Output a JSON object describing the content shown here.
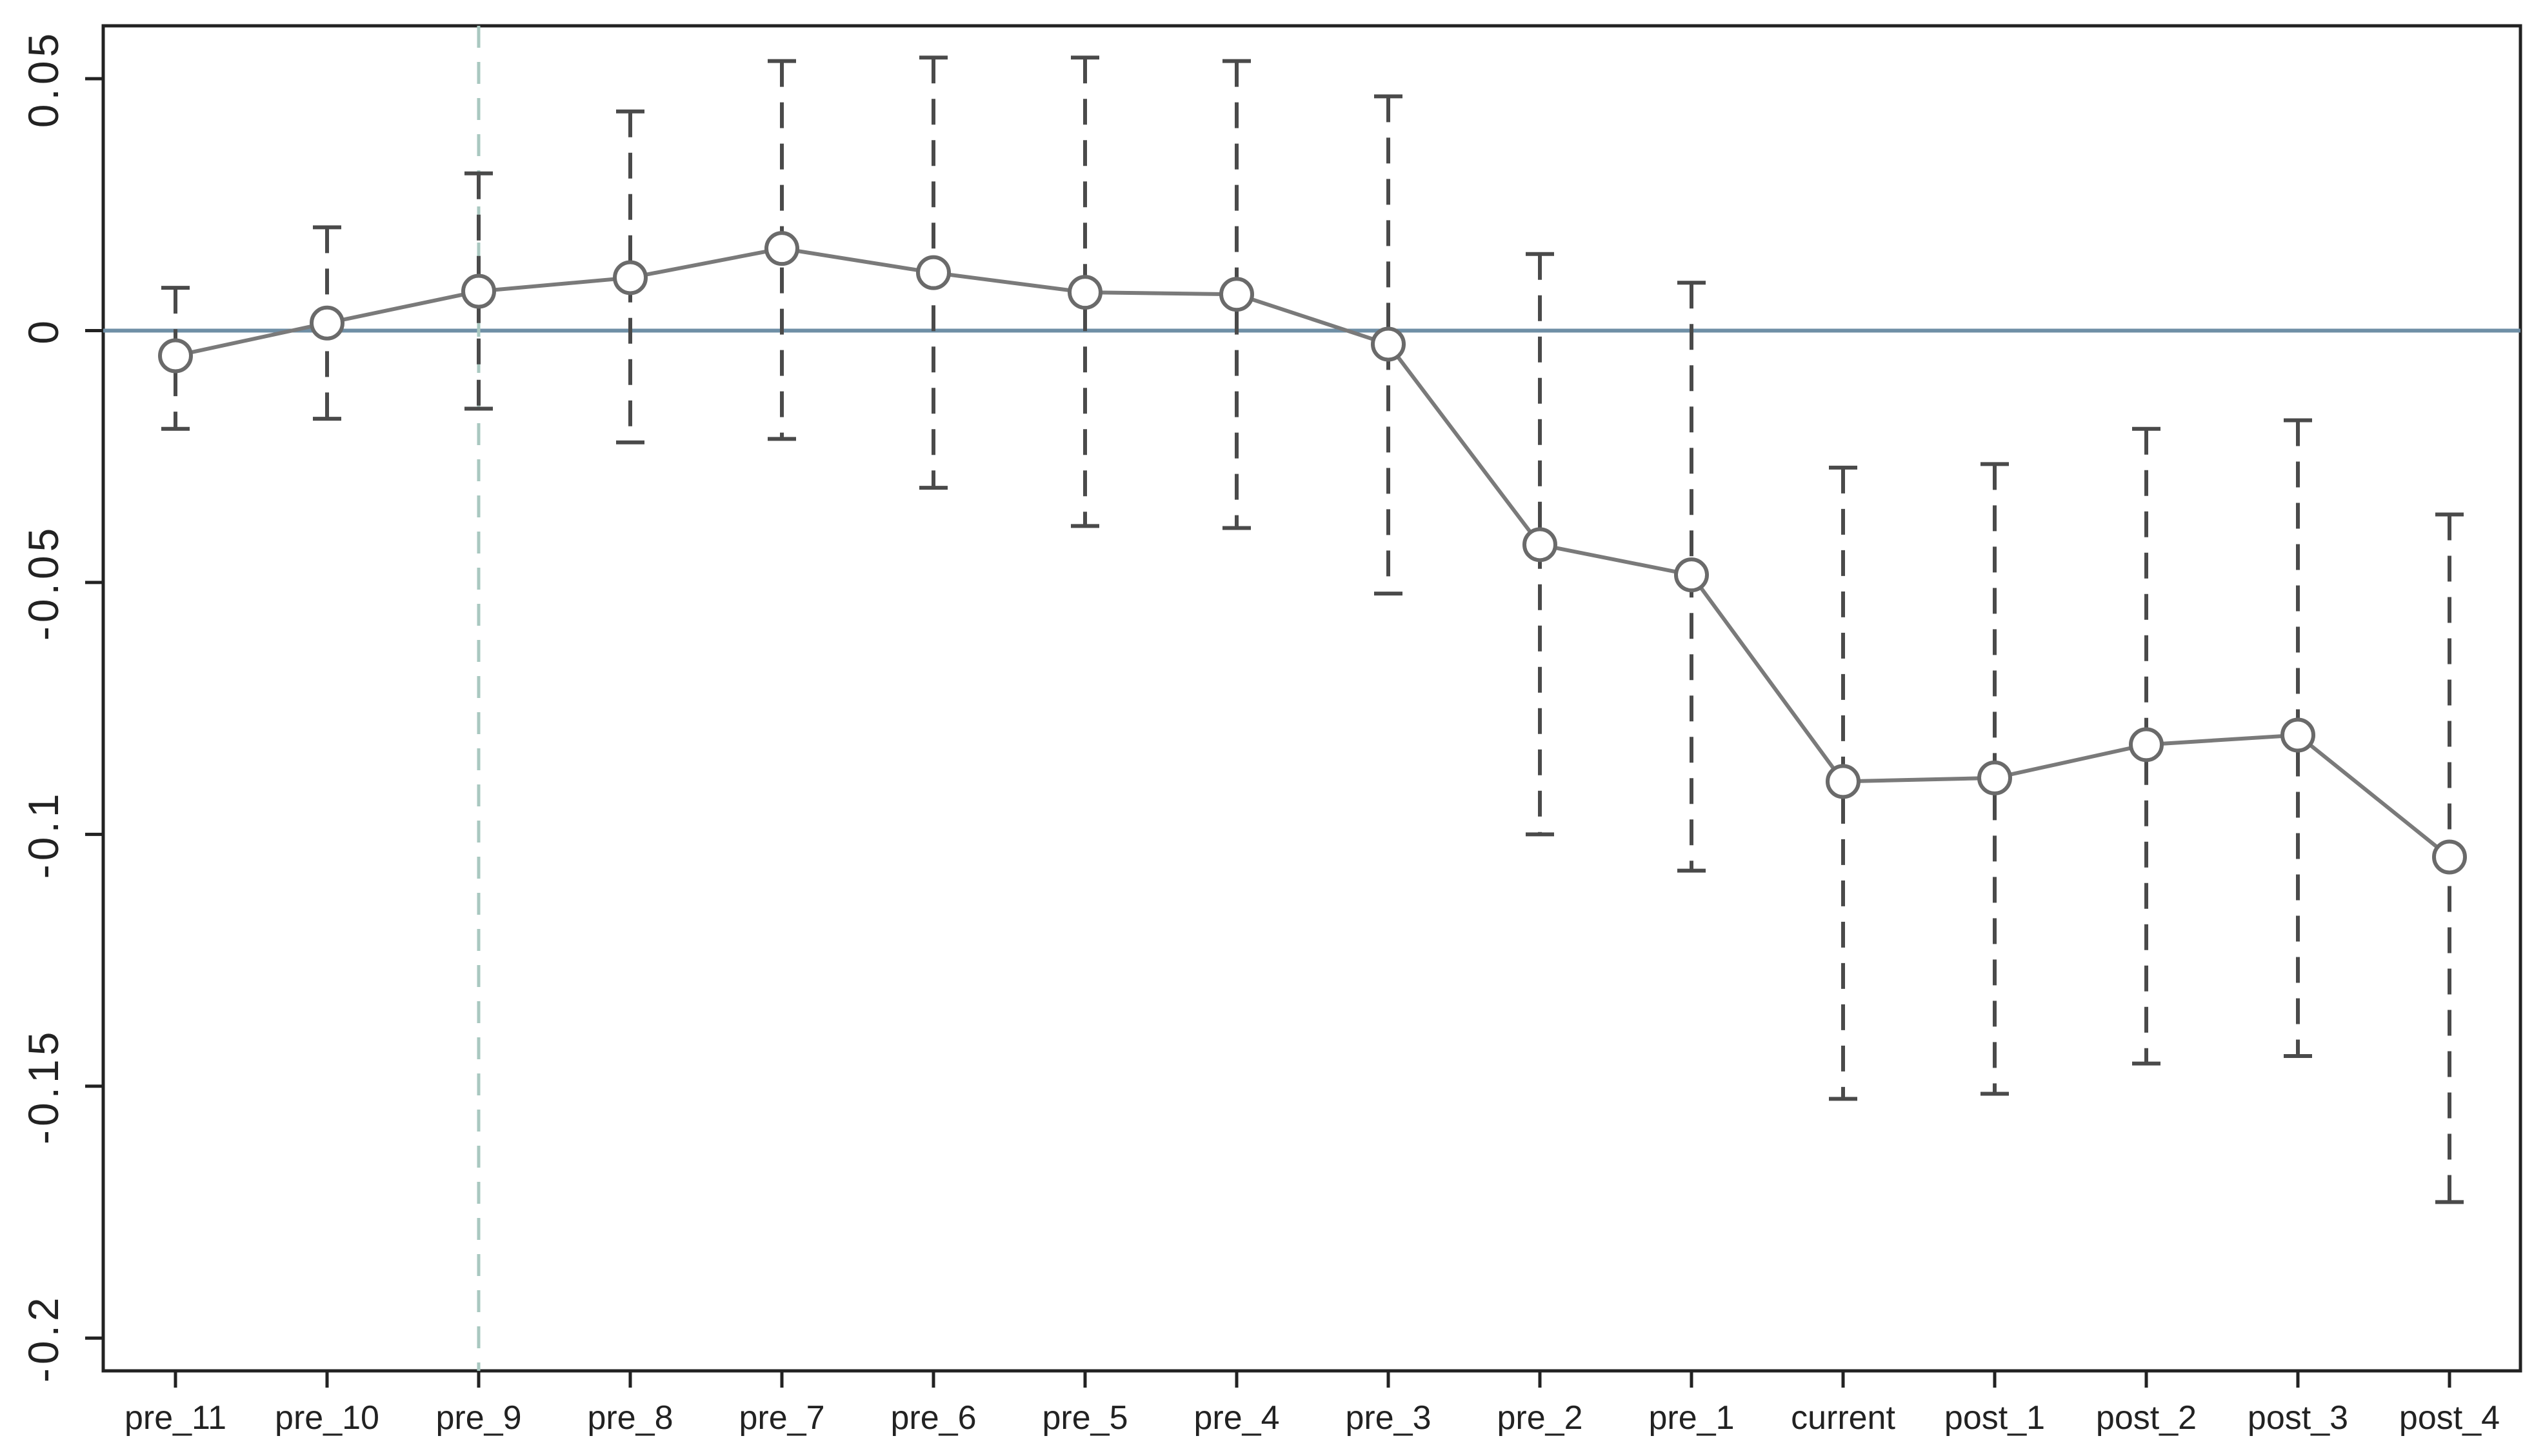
{
  "chart_data": {
    "type": "line",
    "categories": [
      "pre_11",
      "pre_10",
      "pre_9",
      "pre_8",
      "pre_7",
      "pre_6",
      "pre_5",
      "pre_4",
      "pre_3",
      "pre_2",
      "pre_1",
      "current",
      "post_1",
      "post_2",
      "post_3",
      "post_4"
    ],
    "estimate": [
      -0.005,
      0.0015,
      0.0078,
      0.0105,
      0.0163,
      0.0115,
      0.0076,
      0.0072,
      -0.0027,
      -0.0425,
      -0.0485,
      -0.0895,
      -0.0888,
      -0.0822,
      -0.0803,
      -0.1045
    ],
    "ci_lower": [
      -0.0195,
      -0.0175,
      -0.0155,
      -0.0222,
      -0.0215,
      -0.0312,
      -0.0388,
      -0.0392,
      -0.0522,
      -0.1,
      -0.1072,
      -0.1525,
      -0.1515,
      -0.1455,
      -0.144,
      -0.173
    ],
    "ci_upper": [
      0.0085,
      0.0205,
      0.0312,
      0.0435,
      0.0535,
      0.0542,
      0.0542,
      0.0535,
      0.0465,
      0.0152,
      0.0095,
      -0.0272,
      -0.0265,
      -0.0195,
      -0.0178,
      -0.0365
    ],
    "y_ticks": [
      0.05,
      0,
      -0.05,
      -0.1,
      -0.15,
      -0.2
    ],
    "y_tick_labels": [
      "0.05",
      "0",
      "-0.05",
      "-0.1",
      "-0.15",
      "-0.2"
    ],
    "ylim": [
      -0.2065,
      0.0605
    ],
    "reference_hline": 0,
    "reference_vline_category": "pre_9",
    "grid": false,
    "colors": {
      "series": "#7a7a7a",
      "error_bars": "#4a4a4a",
      "hline": "#6f8fa6",
      "vline": "#a9c8c0",
      "axes": "#222222"
    }
  }
}
